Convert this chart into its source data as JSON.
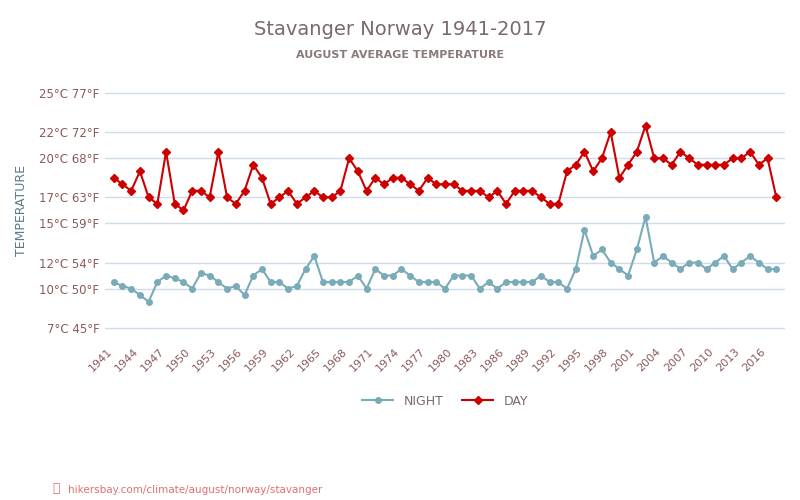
{
  "title": "Stavanger Norway 1941-2017",
  "subtitle": "AUGUST AVERAGE TEMPERATURE",
  "ylabel": "TEMPERATURE",
  "watermark": "hikersbay.com/climate/august/norway/stavanger",
  "background_color": "#ffffff",
  "grid_color": "#d0dce8",
  "title_color": "#7a6a6a",
  "subtitle_color": "#8a7a7a",
  "ylabel_color": "#5a7a8a",
  "tick_color": "#8a5a5a",
  "years": [
    1941,
    1942,
    1943,
    1944,
    1945,
    1946,
    1947,
    1948,
    1949,
    1950,
    1951,
    1952,
    1953,
    1954,
    1955,
    1956,
    1957,
    1958,
    1959,
    1960,
    1961,
    1962,
    1963,
    1964,
    1965,
    1966,
    1967,
    1968,
    1969,
    1970,
    1971,
    1972,
    1973,
    1974,
    1975,
    1976,
    1977,
    1978,
    1979,
    1980,
    1981,
    1982,
    1983,
    1984,
    1985,
    1986,
    1987,
    1988,
    1989,
    1990,
    1991,
    1992,
    1993,
    1994,
    1995,
    1996,
    1997,
    1998,
    1999,
    2000,
    2001,
    2002,
    2003,
    2004,
    2005,
    2006,
    2007,
    2008,
    2009,
    2010,
    2011,
    2012,
    2013,
    2014,
    2015,
    2016,
    2017
  ],
  "night": [
    10.5,
    10.2,
    10.0,
    9.5,
    9.0,
    10.5,
    11.0,
    10.8,
    10.5,
    10.0,
    11.2,
    11.0,
    10.5,
    10.0,
    10.2,
    9.5,
    11.0,
    11.5,
    10.5,
    10.5,
    10.0,
    10.2,
    11.5,
    12.5,
    10.5,
    10.5,
    10.5,
    10.5,
    11.0,
    10.0,
    11.5,
    11.0,
    11.0,
    11.5,
    11.0,
    10.5,
    10.5,
    10.5,
    10.0,
    11.0,
    11.0,
    11.0,
    10.0,
    10.5,
    10.0,
    10.5,
    10.5,
    10.5,
    10.5,
    11.0,
    10.5,
    10.5,
    10.0,
    11.5,
    14.5,
    12.5,
    13.0,
    12.0,
    11.5,
    11.0,
    13.0,
    15.5,
    12.0,
    12.5,
    12.0,
    11.5,
    12.0,
    12.0,
    11.5,
    12.0,
    12.5,
    11.5,
    12.0,
    12.5,
    12.0,
    11.5,
    11.5
  ],
  "day": [
    18.5,
    18.0,
    17.5,
    19.0,
    17.0,
    16.5,
    20.5,
    16.5,
    16.0,
    17.5,
    17.5,
    17.0,
    20.5,
    17.0,
    16.5,
    17.5,
    19.5,
    18.5,
    16.5,
    17.0,
    17.5,
    16.5,
    17.0,
    17.5,
    17.0,
    17.0,
    17.5,
    20.0,
    19.0,
    17.5,
    18.5,
    18.0,
    18.5,
    18.5,
    18.0,
    17.5,
    18.5,
    18.0,
    18.0,
    18.0,
    17.5,
    17.5,
    17.5,
    17.0,
    17.5,
    16.5,
    17.5,
    17.5,
    17.5,
    17.0,
    16.5,
    16.5,
    19.0,
    19.5,
    20.5,
    19.0,
    20.0,
    22.0,
    18.5,
    19.5,
    20.5,
    22.5,
    20.0,
    20.0,
    19.5,
    20.5,
    20.0,
    19.5,
    19.5,
    19.5,
    19.5,
    20.0,
    20.0,
    20.5,
    19.5,
    20.0,
    17.0
  ],
  "yticks_c": [
    7,
    10,
    12,
    15,
    17,
    20,
    22,
    25
  ],
  "yticks_f": [
    45,
    50,
    54,
    59,
    63,
    68,
    72,
    77
  ],
  "xtick_years": [
    1941,
    1944,
    1947,
    1950,
    1953,
    1956,
    1959,
    1962,
    1965,
    1968,
    1971,
    1974,
    1977,
    1980,
    1983,
    1986,
    1989,
    1992,
    1995,
    1998,
    2001,
    2004,
    2007,
    2010,
    2013,
    2016
  ],
  "night_color": "#7aabb8",
  "day_color": "#cc0000",
  "night_marker": "o",
  "day_marker": "D",
  "marker_size": 4,
  "line_width": 1.5,
  "ylim": [
    6,
    26
  ],
  "legend_night": "NIGHT",
  "legend_day": "DAY"
}
